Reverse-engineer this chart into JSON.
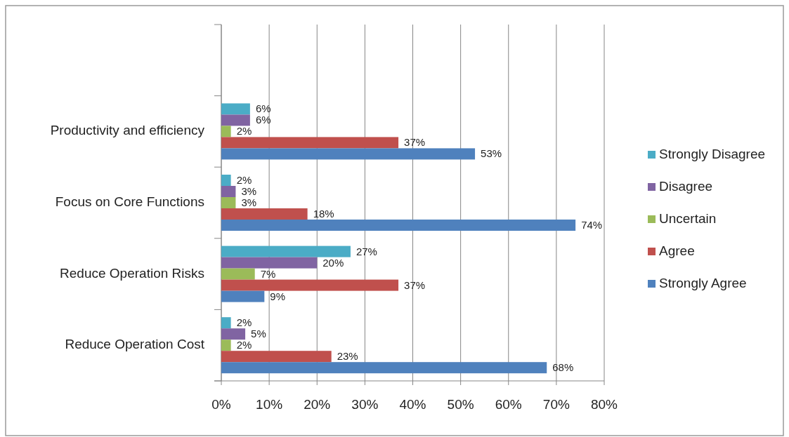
{
  "chart_data": {
    "type": "bar",
    "orientation": "horizontal",
    "categories": [
      null,
      "Productivity and efficiency",
      "Focus on Core Functions",
      "Reduce Operation Risks",
      "Reduce Operation Cost"
    ],
    "series": [
      {
        "name": "Strongly Disagree",
        "color": "#4bacc6",
        "values": [
          null,
          6,
          2,
          27,
          2
        ],
        "value_labels": [
          null,
          "6%",
          "2%",
          "27%",
          "2%"
        ]
      },
      {
        "name": "Disagree",
        "color": "#8064a2",
        "values": [
          null,
          6,
          3,
          20,
          5
        ],
        "value_labels": [
          null,
          "6%",
          "3%",
          "20%",
          "5%"
        ]
      },
      {
        "name": "Uncertain",
        "color": "#9bbb59",
        "values": [
          null,
          2,
          3,
          7,
          2
        ],
        "value_labels": [
          null,
          "2%",
          "3%",
          "7%",
          "2%"
        ]
      },
      {
        "name": "Agree",
        "color": "#c0504d",
        "values": [
          null,
          37,
          18,
          37,
          23
        ],
        "value_labels": [
          null,
          "37%",
          "18%",
          "37%",
          "23%"
        ]
      },
      {
        "name": "Strongly Agree",
        "color": "#4f81bd",
        "values": [
          null,
          53,
          74,
          9,
          68
        ],
        "value_labels": [
          null,
          "53%",
          "74%",
          "9%",
          "68%"
        ]
      }
    ],
    "xlim": [
      0,
      80
    ],
    "xticks": [
      {
        "value": 0,
        "label": "0%"
      },
      {
        "value": 10,
        "label": "10%"
      },
      {
        "value": 20,
        "label": "20%"
      },
      {
        "value": 30,
        "label": "30%"
      },
      {
        "value": 40,
        "label": "40%"
      },
      {
        "value": 50,
        "label": "50%"
      },
      {
        "value": 60,
        "label": "60%"
      },
      {
        "value": 70,
        "label": "70%"
      },
      {
        "value": 80,
        "label": "80%"
      }
    ],
    "grid": "x",
    "legend": "right"
  }
}
